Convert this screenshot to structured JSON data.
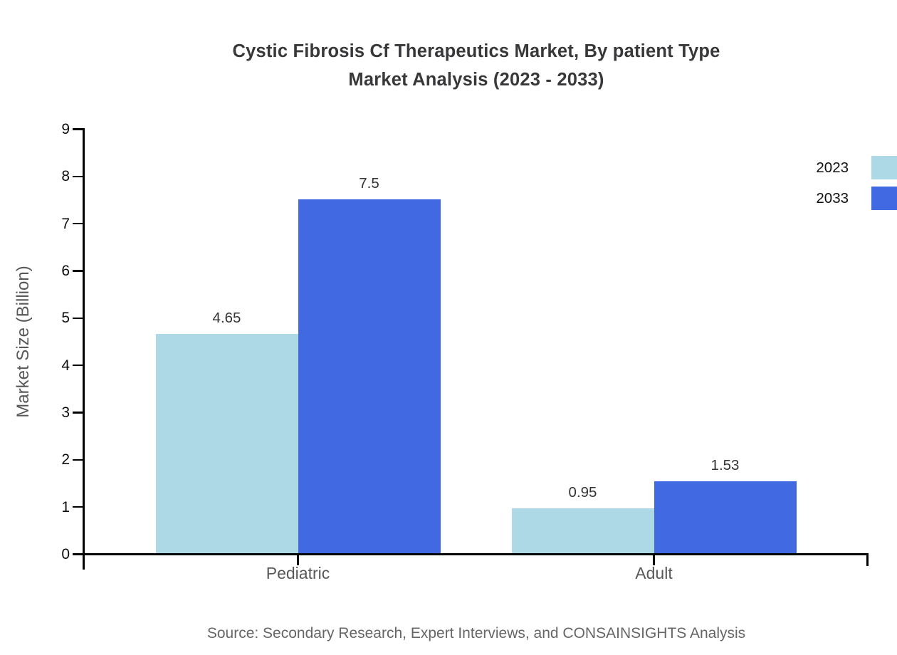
{
  "chart_data": {
    "type": "bar",
    "title": "Cystic Fibrosis Cf Therapeutics Market, By patient Type Market Analysis (2023 - 2033)",
    "title_lines": [
      "Cystic Fibrosis Cf Therapeutics Market, By patient Type",
      "Market Analysis (2023 - 2033)"
    ],
    "categories": [
      "Pediatric",
      "Adult"
    ],
    "series": [
      {
        "name": "2023",
        "color": "#ADD8E6",
        "values": [
          4.65,
          0.95
        ],
        "value_labels": [
          "4.65",
          "0.95"
        ]
      },
      {
        "name": "2033",
        "color": "#4169E1",
        "values": [
          7.5,
          1.53
        ],
        "value_labels": [
          "7.5",
          "1.53"
        ]
      }
    ],
    "xlabel": "",
    "ylabel": "Market Size (Billion)",
    "ylim": [
      0,
      9
    ],
    "ytick_step": 1,
    "ytick_labels": [
      "0",
      "1",
      "2",
      "3",
      "4",
      "5",
      "6",
      "7",
      "8",
      "9"
    ],
    "grid": false,
    "legend_position": "top-right"
  },
  "footer": {
    "source": "Source: Secondary Research, Expert Interviews, and CONSAINSIGHTS Analysis"
  },
  "colors": {
    "series_2023": "#ADD8E6",
    "series_2033": "#4169E1",
    "axis": "#000000",
    "title_text": "#38383a",
    "axis_label_text": "#595959",
    "tick_label_text": "#0d0d0d",
    "value_label_text": "#333333",
    "legend_text": "#111111",
    "source_text": "#666666",
    "background": "#FFFFFF"
  }
}
